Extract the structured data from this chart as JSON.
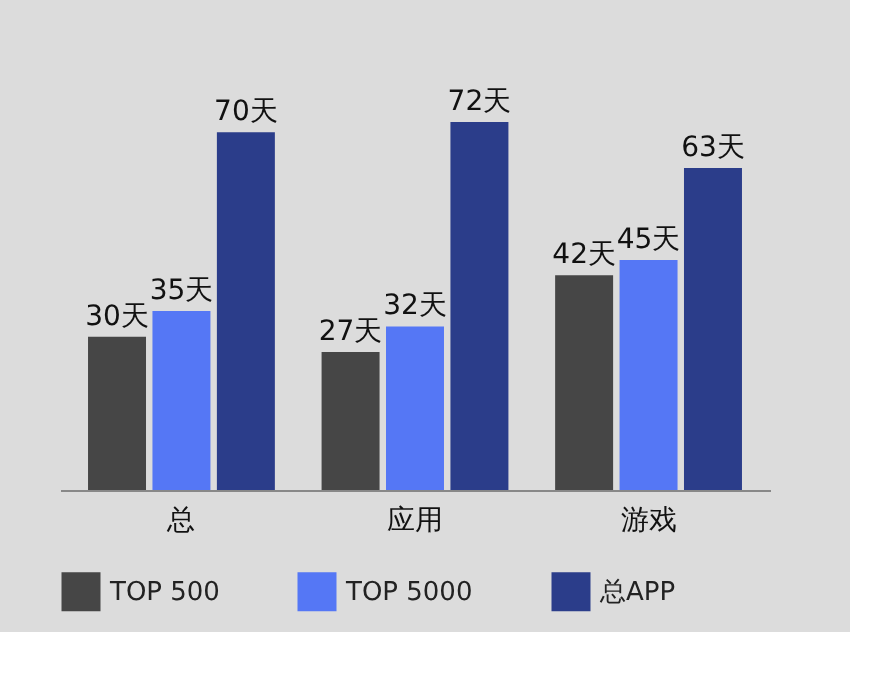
{
  "chart_data": {
    "type": "bar",
    "categories": [
      "总",
      "应用",
      "游戏"
    ],
    "series": [
      {
        "name": "TOP 500",
        "color": "#464646",
        "values": [
          30,
          27,
          42
        ],
        "value_labels": [
          "30天",
          "27天",
          "42天"
        ]
      },
      {
        "name": "TOP 5000",
        "color": "#5577f5",
        "values": [
          35,
          32,
          45
        ],
        "value_labels": [
          "35天",
          "32天",
          "45天"
        ]
      },
      {
        "name": "总APP",
        "color": "#2b3d8a",
        "values": [
          70,
          72,
          63
        ],
        "value_labels": [
          "70天",
          "72天",
          "63天"
        ]
      }
    ],
    "legend": "bottom"
  }
}
